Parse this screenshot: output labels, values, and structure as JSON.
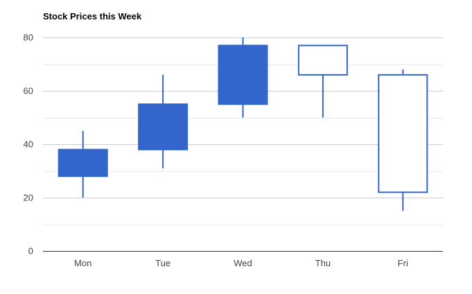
{
  "chart_data": {
    "type": "candlestick",
    "title": "Stock Prices this Week",
    "xlabel": "",
    "ylabel": "",
    "ylim": [
      0,
      80
    ],
    "yticks": [
      0,
      20,
      40,
      60,
      80
    ],
    "grid": true,
    "categories": [
      "Mon",
      "Tue",
      "Wed",
      "Thu",
      "Fri"
    ],
    "candles": [
      {
        "label": "Mon",
        "low": 20,
        "open": 28,
        "close": 38,
        "high": 45
      },
      {
        "label": "Tue",
        "low": 31,
        "open": 38,
        "close": 55,
        "high": 66
      },
      {
        "label": "Wed",
        "low": 50,
        "open": 55,
        "close": 77,
        "high": 80
      },
      {
        "label": "Thu",
        "low": 50,
        "open": 77,
        "close": 66,
        "high": 77
      },
      {
        "label": "Fri",
        "low": 15,
        "open": 66,
        "close": 22,
        "high": 68
      }
    ],
    "colors": {
      "candle": "#3366cc",
      "grid_major": "#cccccc",
      "grid_minor": "#ebebeb",
      "baseline": "#333333"
    }
  }
}
